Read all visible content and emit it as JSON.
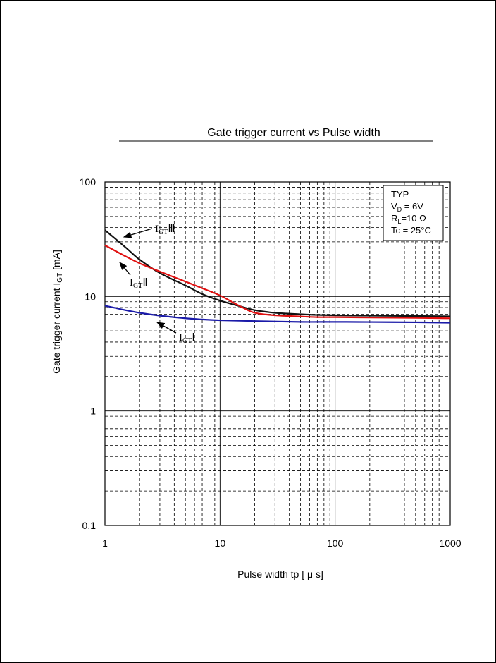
{
  "colors": {
    "background": "#ffffff",
    "grid_major": "#000000",
    "grid_minor": "#000000",
    "series_i_gt_iii": "#111111",
    "series_i_gt_ii": "#e01010",
    "series_i_gt_i": "#1a1aa8"
  },
  "chart_data": {
    "type": "line",
    "title": "Gate trigger current  vs  Pulse width",
    "xlabel": "Pulse width  tp  [ μ s]",
    "ylabel": "Gate  trigger  current I",
    "ylabel_sub": "GT",
    "ylabel_unit": " [mA]",
    "x_scale": "log",
    "y_scale": "log",
    "xlim": [
      1,
      1000
    ],
    "ylim": [
      0.1,
      100
    ],
    "x_ticks": [
      1,
      10,
      100,
      1000
    ],
    "x_tick_labels": [
      "1",
      "10",
      "100",
      "1000"
    ],
    "y_ticks": [
      0.1,
      1,
      10,
      100
    ],
    "y_tick_labels": [
      "0.1",
      "1",
      "10",
      "100"
    ],
    "grid": "major solid, minor dashed",
    "conditions": {
      "line1": "TYP",
      "line2_main": "V",
      "line2_sub": "D",
      "line2_rest": " = 6V",
      "line3_main": "R",
      "line3_sub": "L",
      "line3_rest": "=10 Ω",
      "line4": "Tc = 25°C",
      "placement": "top-right"
    },
    "series": [
      {
        "name": "IGT III",
        "label_main": "I",
        "label_sub": "GT",
        "label_roman": "Ⅲ",
        "color_key": "series_i_gt_iii",
        "x": [
          1,
          1.5,
          2,
          3,
          5,
          7,
          10,
          15,
          20,
          30,
          50,
          70,
          100,
          200,
          500,
          1000
        ],
        "y": [
          38,
          27,
          21,
          16,
          12.5,
          10.5,
          9.2,
          8.2,
          7.6,
          7.2,
          7.0,
          6.9,
          6.85,
          6.8,
          6.75,
          6.7
        ]
      },
      {
        "name": "IGT II",
        "label_main": "I",
        "label_sub": "GT",
        "label_roman": "Ⅱ",
        "color_key": "series_i_gt_ii",
        "x": [
          1,
          1.5,
          2,
          3,
          5,
          7,
          10,
          15,
          20,
          30,
          50,
          70,
          100,
          200,
          500,
          1000
        ],
        "y": [
          28,
          22.5,
          19.5,
          16.5,
          13.5,
          11.8,
          10.2,
          8.2,
          7.2,
          6.85,
          6.7,
          6.6,
          6.6,
          6.55,
          6.5,
          6.45
        ]
      },
      {
        "name": "IGT I",
        "label_main": "I",
        "label_sub": "GT",
        "label_roman": "Ⅰ",
        "color_key": "series_i_gt_i",
        "x": [
          1,
          1.5,
          2,
          3,
          5,
          7,
          10,
          20,
          50,
          100,
          200,
          500,
          1000
        ],
        "y": [
          8.3,
          7.6,
          7.2,
          6.8,
          6.45,
          6.3,
          6.2,
          6.1,
          6.0,
          6.0,
          5.98,
          5.95,
          5.9
        ]
      }
    ]
  }
}
